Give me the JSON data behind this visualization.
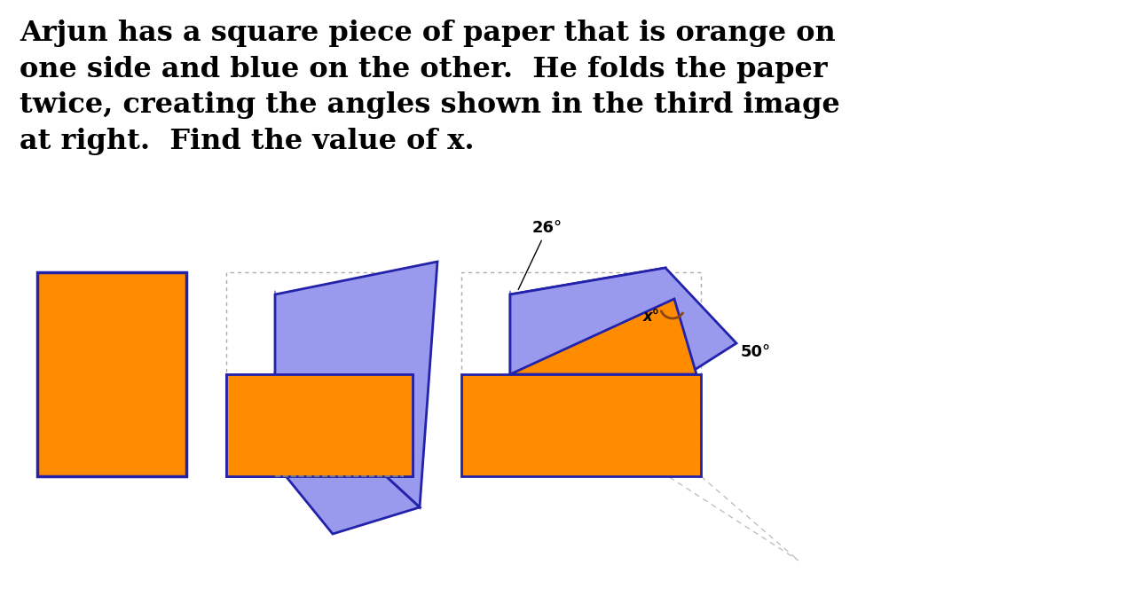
{
  "title_text": "Arjun has a square piece of paper that is orange on\none side and blue on the other.  He folds the paper\ntwice, creating the angles shown in the third image\nat right.  Find the value of x.",
  "title_fontsize": 23,
  "title_color": "#000000",
  "bg_color": "#ffffff",
  "orange_color": "#FF8C00",
  "blue_color": "#9999EE",
  "dark_blue_outline": "#2222AA",
  "angle_arc_color": "#8B4513",
  "fig_width": 12.68,
  "fig_height": 6.72,
  "label_26": "26°",
  "label_x": "x°",
  "label_50": "50°",
  "dpi": 100
}
